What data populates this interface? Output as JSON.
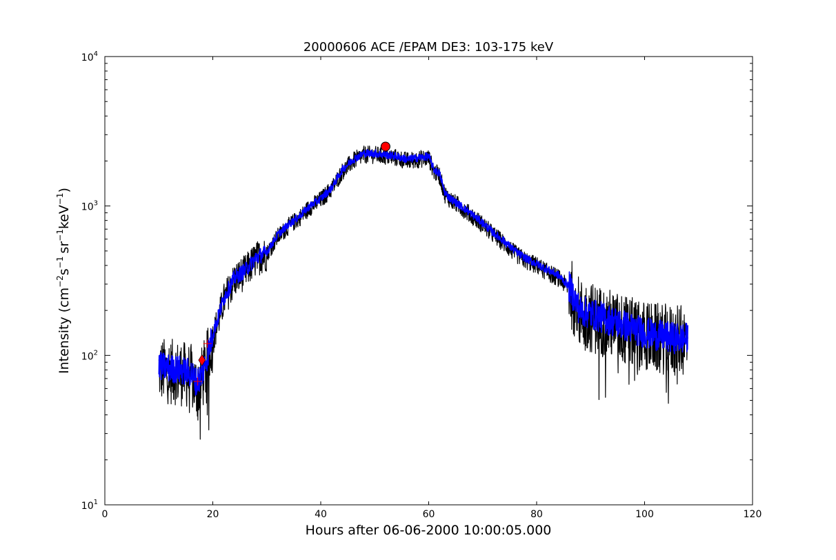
{
  "chart_data": {
    "type": "line",
    "title": "20000606 ACE /EPAM DE3: 103-175 keV",
    "xlabel": "Hours after 06-06-2000 10:00:05.000",
    "ylabel": {
      "main": "Intensity (cm",
      "exp1": "−2",
      "s": "s",
      "exp2": "−1",
      "sr": "sr",
      "exp3": "−1",
      "kev": "keV",
      "exp4": "−1",
      "close": ")"
    },
    "xlim": [
      0,
      120
    ],
    "ylim": [
      10,
      10000
    ],
    "yscale": "log",
    "grid": false,
    "x_ticks": [
      "0",
      "20",
      "40",
      "60",
      "80",
      "100",
      "120"
    ],
    "y_ticks": [
      {
        "base": "10",
        "exp": "1",
        "value": 10
      },
      {
        "base": "10",
        "exp": "2",
        "value": 100
      },
      {
        "base": "10",
        "exp": "3",
        "value": 1000
      },
      {
        "base": "10",
        "exp": "4",
        "value": 10000
      }
    ],
    "series": [
      {
        "role": "raw",
        "color": "#000000",
        "x": [
          10,
          12,
          14,
          16,
          17,
          18,
          19,
          20,
          21,
          22,
          24,
          26,
          28,
          30,
          32,
          34,
          36,
          38,
          40,
          42,
          44,
          46,
          48,
          50,
          52,
          54,
          56,
          58,
          60,
          61,
          62,
          63,
          64,
          66,
          68,
          70,
          72,
          74,
          76,
          78,
          80,
          82,
          84,
          86,
          88,
          90,
          92,
          94,
          96,
          98,
          100,
          102,
          104,
          106,
          108
        ],
        "y": [
          80,
          78,
          76,
          72,
          60,
          70,
          90,
          130,
          170,
          230,
          320,
          360,
          440,
          480,
          620,
          730,
          830,
          980,
          1100,
          1300,
          1700,
          2000,
          2200,
          2200,
          2150,
          2100,
          2000,
          2050,
          2100,
          1700,
          1600,
          1200,
          1100,
          980,
          860,
          750,
          640,
          560,
          480,
          430,
          400,
          360,
          330,
          280,
          190,
          180,
          170,
          160,
          150,
          140,
          135,
          130,
          128,
          125,
          125
        ]
      },
      {
        "role": "smoothed",
        "color": "#0000ff",
        "x": [
          10,
          12,
          14,
          16,
          17,
          18,
          19,
          20,
          21,
          22,
          24,
          26,
          28,
          30,
          32,
          34,
          36,
          38,
          40,
          42,
          44,
          46,
          48,
          50,
          52,
          54,
          56,
          58,
          60,
          61,
          62,
          63,
          64,
          66,
          68,
          70,
          72,
          74,
          76,
          78,
          80,
          82,
          84,
          86,
          88,
          90,
          92,
          94,
          96,
          98,
          100,
          102,
          104,
          106,
          108
        ],
        "y": [
          85,
          82,
          80,
          76,
          66,
          75,
          100,
          140,
          180,
          240,
          330,
          370,
          450,
          490,
          640,
          750,
          850,
          1000,
          1120,
          1320,
          1750,
          2050,
          2250,
          2250,
          2200,
          2150,
          2050,
          2100,
          2150,
          1750,
          1650,
          1230,
          1120,
          1000,
          880,
          770,
          660,
          580,
          500,
          445,
          410,
          375,
          345,
          290,
          200,
          190,
          180,
          170,
          160,
          150,
          142,
          137,
          133,
          130,
          130
        ]
      }
    ],
    "markers": [
      {
        "kind": "circle",
        "color": "#ff0000",
        "x": 52,
        "y": 2500
      },
      {
        "kind": "diamond",
        "color": "#ff0000",
        "x": 18,
        "y": 93
      },
      {
        "kind": "plus",
        "color": "#ff0000",
        "x": 17.2,
        "y": 67
      },
      {
        "kind": "plus",
        "color": "#ff0000",
        "x": 19,
        "y": 120
      }
    ]
  }
}
